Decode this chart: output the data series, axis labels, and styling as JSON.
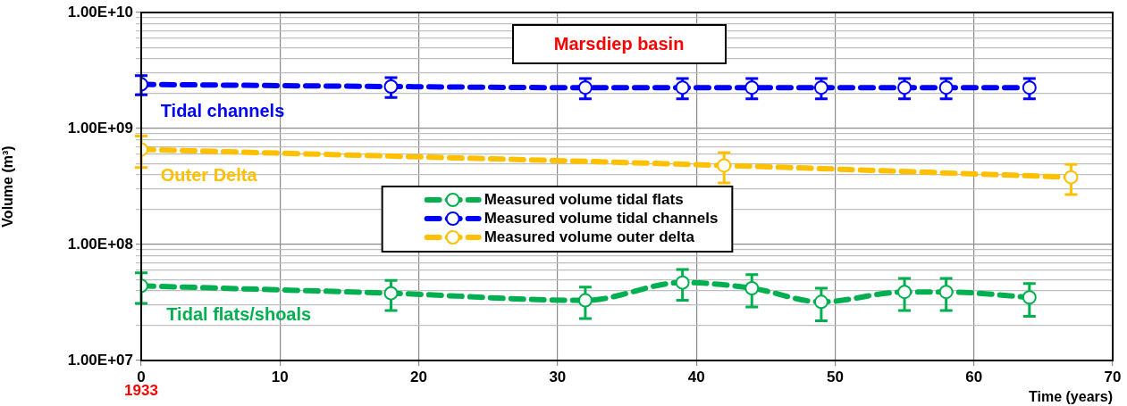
{
  "chart_data": {
    "type": "line",
    "title": "Marsdiep basin",
    "xlabel": "Time (years)",
    "ylabel": "Volume (m³)",
    "xlim": [
      0,
      70
    ],
    "xticks": [
      0,
      10,
      20,
      30,
      40,
      50,
      60,
      70
    ],
    "ylim": [
      10000000,
      10000000000
    ],
    "yticks": [
      {
        "value": 10000000,
        "label": "1.00E+07"
      },
      {
        "value": 20000000,
        "label": null
      },
      {
        "value": 30000000,
        "label": null
      },
      {
        "value": 40000000,
        "label": null
      },
      {
        "value": 50000000,
        "label": null
      },
      {
        "value": 60000000,
        "label": null
      },
      {
        "value": 70000000,
        "label": null
      },
      {
        "value": 80000000,
        "label": null
      },
      {
        "value": 90000000,
        "label": null
      },
      {
        "value": 100000000,
        "label": "1.00E+08"
      },
      {
        "value": 200000000,
        "label": null
      },
      {
        "value": 300000000,
        "label": null
      },
      {
        "value": 400000000,
        "label": null
      },
      {
        "value": 500000000,
        "label": null
      },
      {
        "value": 600000000,
        "label": null
      },
      {
        "value": 700000000,
        "label": null
      },
      {
        "value": 800000000,
        "label": null
      },
      {
        "value": 900000000,
        "label": null
      },
      {
        "value": 1000000000,
        "label": "1.00E+09"
      },
      {
        "value": 2000000000,
        "label": null
      },
      {
        "value": 3000000000,
        "label": null
      },
      {
        "value": 4000000000,
        "label": null
      },
      {
        "value": 5000000000,
        "label": null
      },
      {
        "value": 6000000000,
        "label": null
      },
      {
        "value": 7000000000,
        "label": null
      },
      {
        "value": 8000000000,
        "label": null
      },
      {
        "value": 9000000000,
        "label": null
      },
      {
        "value": 10000000000,
        "label": "1.00E+10"
      }
    ],
    "log": "y",
    "grid": true,
    "legend": "center",
    "marker": "circle",
    "line_style": "dashed",
    "series": [
      {
        "name": "Measured volume tidal flats",
        "color": "#00b050",
        "x": [
          0,
          18,
          32,
          39,
          44,
          49,
          55,
          58,
          64
        ],
        "values": [
          44000000,
          38000000,
          33000000,
          47000000,
          42000000,
          32000000,
          39000000,
          39000000,
          35000000
        ],
        "errors": [
          13000000,
          11000000,
          10000000,
          14000000,
          13000000,
          10000000,
          12000000,
          12000000,
          11000000
        ]
      },
      {
        "name": "Measured volume tidal channels",
        "color": "#0000ff",
        "x": [
          0,
          18,
          32,
          39,
          44,
          49,
          55,
          58,
          64
        ],
        "values": [
          2400000000,
          2300000000,
          2250000000,
          2250000000,
          2250000000,
          2250000000,
          2250000000,
          2250000000,
          2250000000
        ],
        "errors": [
          450000000,
          450000000,
          450000000,
          450000000,
          450000000,
          450000000,
          450000000,
          450000000,
          450000000
        ]
      },
      {
        "name": "Measured volume outer delta",
        "color": "#ffc000",
        "x": [
          0,
          42,
          67
        ],
        "values": [
          660000000,
          480000000,
          380000000
        ],
        "errors": [
          200000000,
          140000000,
          110000000
        ]
      }
    ],
    "annotations": [
      "Tidal channels",
      "Outer Delta",
      "Tidal flats/shoals",
      "1933"
    ]
  }
}
